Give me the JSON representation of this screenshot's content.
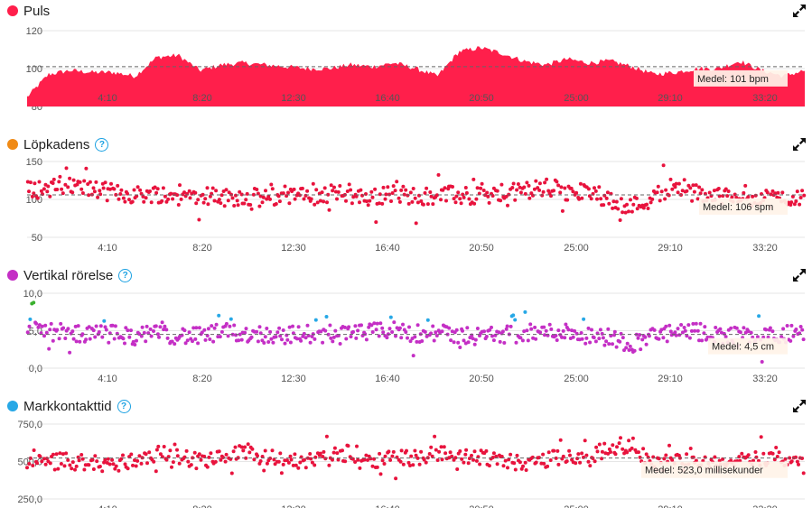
{
  "colors": {
    "heart": "#ff1f4b",
    "cadence_dot": "#e8133d",
    "cadence_legend": "#f08a15",
    "vertical": "#c42fc5",
    "vertical_blue": "#27a8e6",
    "vertical_green": "#3ab02e",
    "vertical_orange": "#f07d10",
    "gct": "#e8133d",
    "gct_legend": "#27a8e6"
  },
  "icons": {
    "help": "question-circle-icon",
    "expand": "expand-arrows-icon"
  },
  "x_ticks": [
    "4:10",
    "8:20",
    "12:30",
    "16:40",
    "20:50",
    "25:00",
    "29:10",
    "33:20"
  ],
  "panels": [
    {
      "title": "Puls",
      "legend_color": "#ff1f4b",
      "has_help": false,
      "y_ticks": [
        "120",
        "100",
        "80"
      ],
      "avg_label": "Medel: 101 bpm"
    },
    {
      "title": "Löpkadens",
      "legend_color": "#f08a15",
      "has_help": true,
      "y_ticks": [
        "150",
        "100",
        "50"
      ],
      "avg_label": "Medel: 106 spm"
    },
    {
      "title": "Vertikal rörelse",
      "legend_color": "#c42fc5",
      "has_help": true,
      "y_ticks": [
        "10,0",
        "5,0",
        "0,0"
      ],
      "avg_label": "Medel: 4,5 cm"
    },
    {
      "title": "Markkontakttid",
      "legend_color": "#27a8e6",
      "has_help": true,
      "y_ticks": [
        "750,0",
        "500,0",
        "250,0"
      ],
      "avg_label": "Medel: 523,0 millisekunder"
    }
  ],
  "chart_data": [
    {
      "type": "area",
      "title": "Puls",
      "x_unit": "min:s",
      "x_range": [
        0,
        36
      ],
      "ylim": [
        80,
        120
      ],
      "average": 101,
      "unit": "bpm",
      "x": [
        0,
        1,
        2,
        3,
        4,
        5,
        6,
        7,
        8,
        9,
        10,
        11,
        12,
        13,
        14,
        15,
        16,
        17,
        18,
        19,
        20,
        21,
        22,
        23,
        24,
        25,
        26,
        27,
        28,
        29,
        30,
        31,
        32,
        33,
        34,
        35,
        36
      ],
      "values": [
        85,
        97,
        99,
        98,
        98,
        96,
        106,
        107,
        99,
        102,
        103,
        102,
        101,
        100,
        100,
        102,
        101,
        103,
        100,
        96,
        109,
        111,
        108,
        104,
        102,
        105,
        103,
        104,
        101,
        97,
        98,
        100,
        100,
        104,
        99,
        96,
        99
      ]
    },
    {
      "type": "scatter",
      "title": "Löpkadens",
      "x_unit": "min:s",
      "x_range": [
        0,
        36
      ],
      "ylim": [
        50,
        150
      ],
      "average": 106,
      "unit": "spm",
      "x": [
        0,
        1,
        2,
        3,
        4,
        5,
        6,
        7,
        8,
        9,
        10,
        11,
        12,
        13,
        14,
        15,
        16,
        17,
        18,
        19,
        20,
        21,
        22,
        23,
        24,
        25,
        26,
        27,
        28,
        29,
        30,
        31,
        32,
        33,
        34,
        35,
        36
      ],
      "values": [
        112,
        115,
        118,
        113,
        109,
        106,
        108,
        104,
        107,
        102,
        104,
        101,
        106,
        103,
        108,
        105,
        102,
        108,
        104,
        106,
        105,
        103,
        106,
        112,
        116,
        108,
        110,
        100,
        91,
        102,
        121,
        108,
        104,
        107,
        103,
        100,
        106
      ]
    },
    {
      "type": "scatter",
      "title": "Vertikal rörelse",
      "x_unit": "min:s",
      "x_range": [
        0,
        36
      ],
      "ylim": [
        0,
        10
      ],
      "average": 4.5,
      "unit": "cm",
      "x": [
        0,
        1,
        2,
        3,
        4,
        5,
        6,
        7,
        8,
        9,
        10,
        11,
        12,
        13,
        14,
        15,
        16,
        17,
        18,
        19,
        20,
        21,
        22,
        23,
        24,
        25,
        26,
        27,
        28,
        29,
        30,
        31,
        32,
        33,
        34,
        35,
        36
      ],
      "values": [
        5.8,
        4.9,
        4.6,
        4.5,
        4.6,
        4.3,
        4.5,
        4.4,
        4.2,
        4.8,
        4.6,
        4.5,
        4.4,
        4.6,
        4.3,
        4.5,
        4.8,
        5.0,
        4.7,
        4.6,
        4.4,
        4.3,
        4.5,
        4.6,
        4.8,
        4.9,
        4.4,
        4.1,
        3.2,
        4.5,
        4.6,
        4.8,
        4.5,
        4.4,
        4.3,
        4.5,
        4.6
      ]
    },
    {
      "type": "scatter",
      "title": "Markkontakttid",
      "x_unit": "min:s",
      "x_range": [
        0,
        36
      ],
      "ylim": [
        250,
        750
      ],
      "average": 523.0,
      "unit": "millisekunder",
      "x": [
        0,
        1,
        2,
        3,
        4,
        5,
        6,
        7,
        8,
        9,
        10,
        11,
        12,
        13,
        14,
        15,
        16,
        17,
        18,
        19,
        20,
        21,
        22,
        23,
        24,
        25,
        26,
        27,
        28,
        29,
        30,
        31,
        32,
        33,
        34,
        35,
        36
      ],
      "values": [
        480,
        495,
        505,
        490,
        480,
        510,
        560,
        540,
        500,
        520,
        560,
        530,
        510,
        500,
        530,
        560,
        510,
        540,
        520,
        560,
        540,
        530,
        520,
        490,
        510,
        550,
        520,
        600,
        610,
        480,
        500,
        490,
        510,
        500,
        530,
        520,
        470
      ]
    }
  ]
}
